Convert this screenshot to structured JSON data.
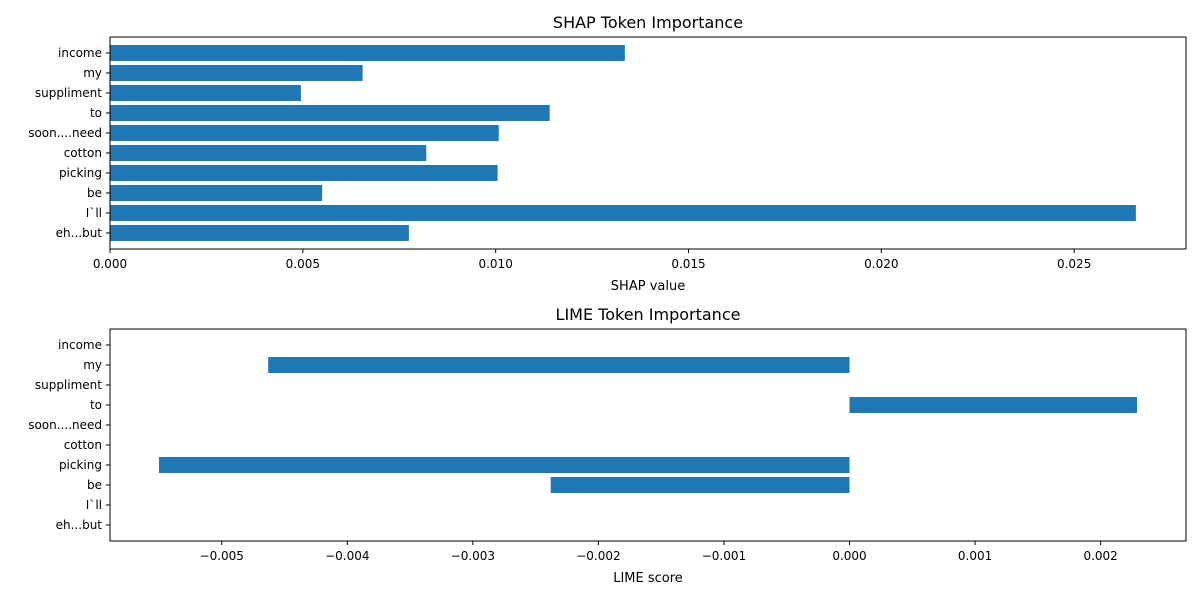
{
  "chart_data": [
    {
      "type": "bar",
      "orientation": "horizontal",
      "title": "SHAP Token Importance",
      "xlabel": "SHAP value",
      "ylabel": "",
      "categories": [
        "income",
        "my",
        "suppliment",
        "to",
        "soon....need",
        "cotton",
        "picking",
        "be",
        "I`ll",
        "eh...but"
      ],
      "values": [
        0.01335,
        0.00655,
        0.00495,
        0.0114,
        0.01008,
        0.0082,
        0.01005,
        0.0055,
        0.0266,
        0.00775
      ],
      "xlim": [
        0,
        0.0279
      ],
      "xticks": [
        0,
        0.005,
        0.01,
        0.015,
        0.02,
        0.025
      ],
      "xtick_labels": [
        "0.000",
        "0.005",
        "0.010",
        "0.015",
        "0.020",
        "0.025"
      ],
      "color": "#1f77b4",
      "grid": false,
      "legend": null
    },
    {
      "type": "bar",
      "orientation": "horizontal",
      "title": "LIME Token Importance",
      "xlabel": "LIME score",
      "ylabel": "",
      "categories": [
        "income",
        "my",
        "suppliment",
        "to",
        "soon....need",
        "cotton",
        "picking",
        "be",
        "I`ll",
        "eh...but"
      ],
      "values": [
        0,
        -0.00463,
        0,
        0.00229,
        0,
        0,
        -0.0055,
        -0.00238,
        0,
        0
      ],
      "xlim": [
        -0.00589,
        0.00268
      ],
      "xticks": [
        -0.005,
        -0.004,
        -0.003,
        -0.002,
        -0.001,
        0,
        0.001,
        0.002
      ],
      "xtick_labels": [
        "−0.005",
        "−0.004",
        "−0.003",
        "−0.002",
        "−0.001",
        "0.000",
        "0.001",
        "0.002"
      ],
      "color": "#1f77b4",
      "grid": false,
      "legend": null
    }
  ]
}
